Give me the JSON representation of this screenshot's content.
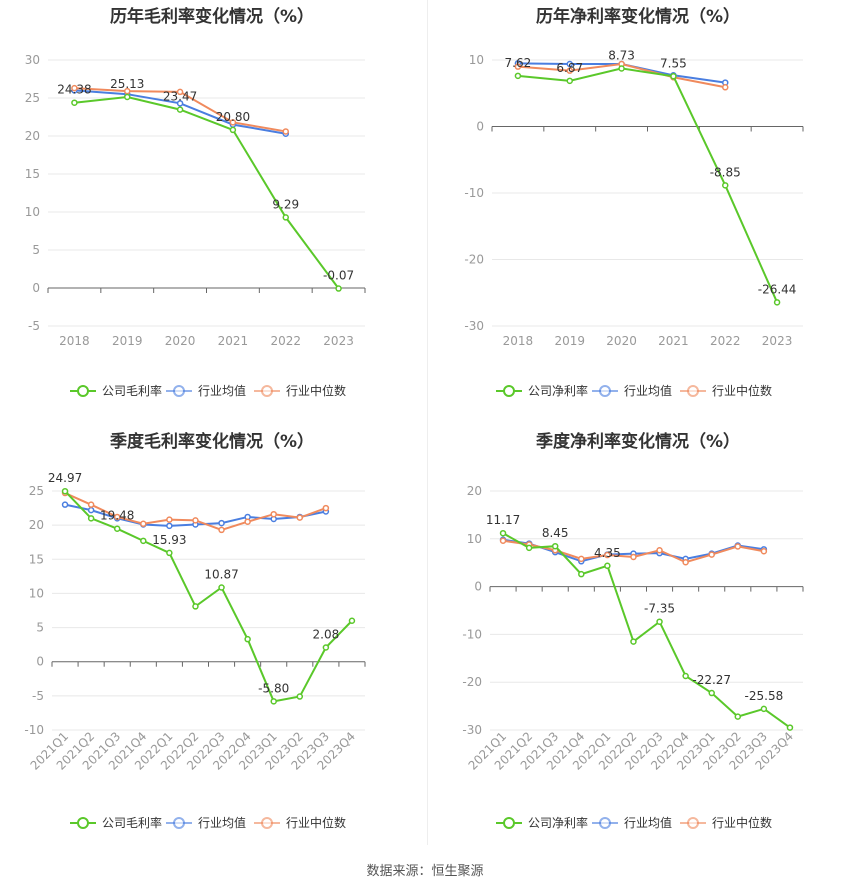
{
  "colors": {
    "company": "#5ac82a",
    "mean": "#4a7ee0",
    "median": "#f08a5d",
    "grid": "#e8e8e8",
    "axis": "#666666"
  },
  "footer": {
    "source_text": "数据来源：恒生聚源"
  },
  "chart_data": [
    {
      "type": "line",
      "title": "历年毛利率变化情况（%）",
      "categories": [
        "2018",
        "2019",
        "2020",
        "2021",
        "2022",
        "2023"
      ],
      "ylim": [
        -5,
        30
      ],
      "yticks": [
        -5,
        0,
        5,
        10,
        15,
        20,
        25,
        30
      ],
      "rotate_x": false,
      "series": [
        {
          "name": "公司毛利率",
          "key": "company",
          "values": [
            24.38,
            25.13,
            23.47,
            20.8,
            9.29,
            -0.07
          ],
          "labels": [
            "24.38",
            "25.13",
            "23.47",
            "20.80",
            "9.29",
            "-0.07"
          ]
        },
        {
          "name": "行业均值",
          "key": "mean",
          "values": [
            26.0,
            25.5,
            24.3,
            21.5,
            20.3,
            null
          ],
          "labels": []
        },
        {
          "name": "行业中位数",
          "key": "median",
          "values": [
            26.3,
            25.9,
            25.8,
            21.8,
            20.6,
            null
          ],
          "labels": []
        }
      ]
    },
    {
      "type": "line",
      "title": "历年净利率变化情况（%）",
      "categories": [
        "2018",
        "2019",
        "2020",
        "2021",
        "2022",
        "2023"
      ],
      "ylim": [
        -30,
        10
      ],
      "yticks": [
        -30,
        -20,
        -10,
        0,
        10
      ],
      "rotate_x": false,
      "series": [
        {
          "name": "公司净利率",
          "key": "company",
          "values": [
            7.62,
            6.87,
            8.73,
            7.55,
            -8.85,
            -26.44
          ],
          "labels": [
            "7.62",
            "6.87",
            "8.73",
            "7.55",
            "-8.85",
            "-26.44"
          ]
        },
        {
          "name": "行业均值",
          "key": "mean",
          "values": [
            9.5,
            9.4,
            9.4,
            7.7,
            6.6,
            null
          ],
          "labels": []
        },
        {
          "name": "行业中位数",
          "key": "median",
          "values": [
            9.0,
            8.4,
            9.4,
            7.4,
            5.9,
            null
          ],
          "labels": []
        }
      ]
    },
    {
      "type": "line",
      "title": "季度毛利率变化情况（%）",
      "categories": [
        "2021Q1",
        "2021Q2",
        "2021Q3",
        "2021Q4",
        "2022Q1",
        "2022Q2",
        "2022Q3",
        "2022Q4",
        "2023Q1",
        "2023Q2",
        "2023Q3",
        "2023Q4"
      ],
      "ylim": [
        -10,
        25
      ],
      "yticks": [
        -10,
        -5,
        0,
        5,
        10,
        15,
        20,
        25
      ],
      "rotate_x": true,
      "series": [
        {
          "name": "公司毛利率",
          "key": "company",
          "values": [
            24.97,
            21.0,
            19.48,
            17.7,
            15.93,
            8.1,
            10.87,
            3.3,
            -5.8,
            -5.1,
            2.08,
            6.0
          ],
          "labels": [
            "24.97",
            "",
            "19.48",
            "",
            "15.93",
            "",
            "10.87",
            "",
            "-5.80",
            "",
            "2.08",
            ""
          ]
        },
        {
          "name": "行业均值",
          "key": "mean",
          "values": [
            23.0,
            22.2,
            21.0,
            20.1,
            19.9,
            20.1,
            20.3,
            21.2,
            20.9,
            21.2,
            22.0,
            null
          ],
          "labels": []
        },
        {
          "name": "行业中位数",
          "key": "median",
          "values": [
            24.7,
            23.0,
            21.2,
            20.2,
            20.8,
            20.7,
            19.3,
            20.5,
            21.6,
            21.1,
            22.5,
            null
          ],
          "labels": []
        }
      ]
    },
    {
      "type": "line",
      "title": "季度净利率变化情况（%）",
      "categories": [
        "2021Q1",
        "2021Q2",
        "2021Q3",
        "2021Q4",
        "2022Q1",
        "2022Q2",
        "2022Q3",
        "2022Q4",
        "2023Q1",
        "2023Q2",
        "2023Q3",
        "2023Q4"
      ],
      "ylim": [
        -30,
        20
      ],
      "yticks": [
        -30,
        -20,
        -10,
        0,
        10,
        20
      ],
      "rotate_x": true,
      "series": [
        {
          "name": "公司净利率",
          "key": "company",
          "values": [
            11.17,
            8.1,
            8.45,
            2.6,
            4.35,
            -11.5,
            -7.35,
            -18.7,
            -22.27,
            -27.2,
            -25.58,
            -29.5
          ],
          "labels": [
            "11.17",
            "",
            "8.45",
            "",
            "4.35",
            "",
            "-7.35",
            "",
            "-22.27",
            "",
            "-25.58",
            ""
          ]
        },
        {
          "name": "行业均值",
          "key": "mean",
          "values": [
            9.8,
            9.0,
            7.2,
            5.3,
            6.7,
            6.9,
            7.0,
            5.8,
            6.9,
            8.6,
            7.8,
            null
          ],
          "labels": []
        },
        {
          "name": "行业中位数",
          "key": "median",
          "values": [
            9.6,
            8.8,
            7.6,
            5.8,
            6.6,
            6.2,
            7.6,
            5.1,
            6.7,
            8.4,
            7.4,
            null
          ],
          "labels": []
        }
      ]
    }
  ]
}
